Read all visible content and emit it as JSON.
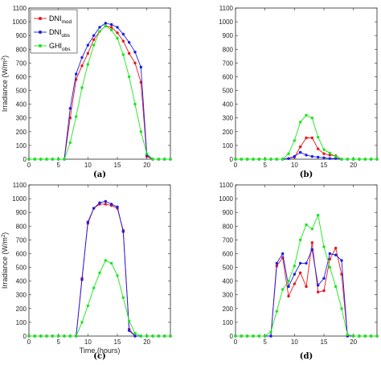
{
  "figure": {
    "legend": {
      "items": [
        {
          "base": "DNI",
          "sub": "mod",
          "color": "#e8141c"
        },
        {
          "base": "DNI",
          "sub": "obs",
          "color": "#1c1ce8"
        },
        {
          "base": "GHI",
          "sub": "obs",
          "color": "#18e818"
        }
      ]
    }
  },
  "chart_data": [
    {
      "panel": "(a)",
      "type": "line",
      "xlim": [
        0,
        24
      ],
      "ylim": [
        0,
        1100
      ],
      "xticks": [
        0,
        5,
        10,
        15,
        20
      ],
      "yticks": [
        0,
        100,
        200,
        300,
        400,
        500,
        600,
        700,
        800,
        900,
        1000,
        1100
      ],
      "ylabel": "Irradiance (W/m2)",
      "xlabel": "",
      "legend_position": "top-left",
      "series": [
        {
          "name": "DNI mod",
          "color": "#e8141c",
          "x": [
            0,
            1,
            2,
            3,
            4,
            5,
            6,
            7,
            8,
            9,
            10,
            11,
            12,
            13,
            14,
            15,
            16,
            17,
            18,
            19,
            20,
            21,
            22,
            23,
            24
          ],
          "y": [
            0,
            0,
            0,
            0,
            0,
            0,
            0,
            300,
            580,
            680,
            770,
            870,
            930,
            970,
            960,
            920,
            860,
            770,
            700,
            560,
            20,
            0,
            0,
            0,
            0
          ]
        },
        {
          "name": "DNI obs",
          "color": "#1c1ce8",
          "x": [
            0,
            1,
            2,
            3,
            4,
            5,
            6,
            7,
            8,
            9,
            10,
            11,
            12,
            13,
            14,
            15,
            16,
            17,
            18,
            19,
            20,
            21,
            22,
            23,
            24
          ],
          "y": [
            0,
            0,
            0,
            0,
            0,
            0,
            0,
            370,
            620,
            740,
            830,
            900,
            960,
            990,
            980,
            960,
            910,
            850,
            780,
            670,
            30,
            0,
            0,
            0,
            0
          ]
        },
        {
          "name": "GHI obs",
          "color": "#18e818",
          "x": [
            0,
            1,
            2,
            3,
            4,
            5,
            6,
            7,
            8,
            9,
            10,
            11,
            12,
            13,
            14,
            15,
            16,
            17,
            18,
            19,
            20,
            21,
            22,
            23,
            24
          ],
          "y": [
            0,
            0,
            0,
            0,
            0,
            0,
            0,
            120,
            310,
            520,
            690,
            830,
            930,
            970,
            940,
            880,
            760,
            600,
            400,
            200,
            40,
            0,
            0,
            0,
            0
          ]
        }
      ]
    },
    {
      "panel": "(b)",
      "type": "line",
      "xlim": [
        0,
        24
      ],
      "ylim": [
        0,
        1100
      ],
      "xticks": [
        0,
        5,
        10,
        15,
        20
      ],
      "yticks": [
        0,
        100,
        200,
        300,
        400,
        500,
        600,
        700,
        800,
        900,
        1000,
        1100
      ],
      "ylabel": "",
      "xlabel": "",
      "series": [
        {
          "name": "DNI mod",
          "color": "#e8141c",
          "x": [
            0,
            1,
            2,
            3,
            4,
            5,
            6,
            7,
            8,
            9,
            10,
            11,
            12,
            13,
            14,
            15,
            16,
            17,
            18,
            19,
            20,
            21,
            22,
            23,
            24
          ],
          "y": [
            0,
            0,
            0,
            0,
            0,
            0,
            0,
            0,
            0,
            5,
            15,
            90,
            155,
            155,
            75,
            40,
            30,
            25,
            0,
            0,
            0,
            0,
            0,
            0,
            0
          ]
        },
        {
          "name": "DNI obs",
          "color": "#1c1ce8",
          "x": [
            0,
            1,
            2,
            3,
            4,
            5,
            6,
            7,
            8,
            9,
            10,
            11,
            12,
            13,
            14,
            15,
            16,
            17,
            18,
            19,
            20,
            21,
            22,
            23,
            24
          ],
          "y": [
            0,
            0,
            0,
            0,
            0,
            0,
            0,
            0,
            0,
            5,
            20,
            50,
            30,
            20,
            15,
            10,
            5,
            5,
            0,
            0,
            0,
            0,
            0,
            0,
            0
          ]
        },
        {
          "name": "GHI obs",
          "color": "#18e818",
          "x": [
            0,
            1,
            2,
            3,
            4,
            5,
            6,
            7,
            8,
            9,
            10,
            11,
            12,
            13,
            14,
            15,
            16,
            17,
            18,
            19,
            20,
            21,
            22,
            23,
            24
          ],
          "y": [
            0,
            0,
            0,
            0,
            0,
            0,
            0,
            0,
            0,
            40,
            135,
            270,
            320,
            300,
            160,
            70,
            45,
            20,
            0,
            0,
            0,
            0,
            0,
            0,
            0
          ]
        }
      ]
    },
    {
      "panel": "(c)",
      "type": "line",
      "xlim": [
        0,
        24
      ],
      "ylim": [
        0,
        1100
      ],
      "xticks": [
        0,
        5,
        10,
        15,
        20
      ],
      "yticks": [
        0,
        100,
        200,
        300,
        400,
        500,
        600,
        700,
        800,
        900,
        1000,
        1100
      ],
      "ylabel": "Irradiance (W/m2)",
      "xlabel": "Time (hours)",
      "series": [
        {
          "name": "DNI mod",
          "color": "#e8141c",
          "x": [
            0,
            1,
            2,
            3,
            4,
            5,
            6,
            7,
            8,
            9,
            10,
            11,
            12,
            13,
            14,
            15,
            16,
            17,
            18,
            19,
            20,
            21,
            22,
            23,
            24
          ],
          "y": [
            0,
            0,
            0,
            0,
            0,
            0,
            0,
            0,
            0,
            420,
            820,
            930,
            960,
            960,
            950,
            930,
            770,
            50,
            0,
            0,
            0,
            0,
            0,
            0,
            0
          ]
        },
        {
          "name": "DNI obs",
          "color": "#1c1ce8",
          "x": [
            0,
            1,
            2,
            3,
            4,
            5,
            6,
            7,
            8,
            9,
            10,
            11,
            12,
            13,
            14,
            15,
            16,
            17,
            18,
            19,
            20,
            21,
            22,
            23,
            24
          ],
          "y": [
            0,
            0,
            0,
            0,
            0,
            0,
            0,
            0,
            0,
            410,
            830,
            930,
            970,
            980,
            960,
            940,
            760,
            40,
            0,
            0,
            0,
            0,
            0,
            0,
            0
          ]
        },
        {
          "name": "GHI obs",
          "color": "#18e818",
          "x": [
            0,
            1,
            2,
            3,
            4,
            5,
            6,
            7,
            8,
            9,
            10,
            11,
            12,
            13,
            14,
            15,
            16,
            17,
            18,
            19,
            20,
            21,
            22,
            23,
            24
          ],
          "y": [
            0,
            0,
            0,
            0,
            0,
            0,
            0,
            0,
            0,
            100,
            220,
            350,
            460,
            550,
            530,
            440,
            280,
            110,
            20,
            0,
            0,
            0,
            0,
            0,
            0
          ]
        }
      ]
    },
    {
      "panel": "(d)",
      "type": "line",
      "xlim": [
        0,
        24
      ],
      "ylim": [
        0,
        1100
      ],
      "xticks": [
        0,
        5,
        10,
        15,
        20
      ],
      "yticks": [
        0,
        100,
        200,
        300,
        400,
        500,
        600,
        700,
        800,
        900,
        1000,
        1100
      ],
      "ylabel": "",
      "xlabel": "",
      "series": [
        {
          "name": "DNI mod",
          "color": "#e8141c",
          "x": [
            0,
            1,
            2,
            3,
            4,
            5,
            6,
            7,
            8,
            9,
            10,
            11,
            12,
            13,
            14,
            15,
            16,
            17,
            18,
            19,
            20,
            21,
            22,
            23,
            24
          ],
          "y": [
            0,
            0,
            0,
            0,
            0,
            0,
            0,
            510,
            570,
            290,
            380,
            460,
            360,
            680,
            320,
            330,
            560,
            640,
            450,
            0,
            0,
            0,
            0,
            0,
            0
          ]
        },
        {
          "name": "DNI obs",
          "color": "#1c1ce8",
          "x": [
            0,
            1,
            2,
            3,
            4,
            5,
            6,
            7,
            8,
            9,
            10,
            11,
            12,
            13,
            14,
            15,
            16,
            17,
            18,
            19,
            20,
            21,
            22,
            23,
            24
          ],
          "y": [
            0,
            0,
            0,
            0,
            0,
            0,
            0,
            530,
            600,
            360,
            450,
            530,
            530,
            630,
            370,
            420,
            600,
            590,
            550,
            0,
            0,
            0,
            0,
            0,
            0
          ]
        },
        {
          "name": "GHI obs",
          "color": "#18e818",
          "x": [
            0,
            1,
            2,
            3,
            4,
            5,
            6,
            7,
            8,
            9,
            10,
            11,
            12,
            13,
            14,
            15,
            16,
            17,
            18,
            19,
            20,
            21,
            22,
            23,
            24
          ],
          "y": [
            0,
            0,
            0,
            0,
            0,
            0,
            30,
            180,
            340,
            400,
            510,
            700,
            810,
            780,
            880,
            650,
            500,
            360,
            200,
            10,
            0,
            0,
            0,
            0,
            0
          ]
        }
      ]
    }
  ]
}
